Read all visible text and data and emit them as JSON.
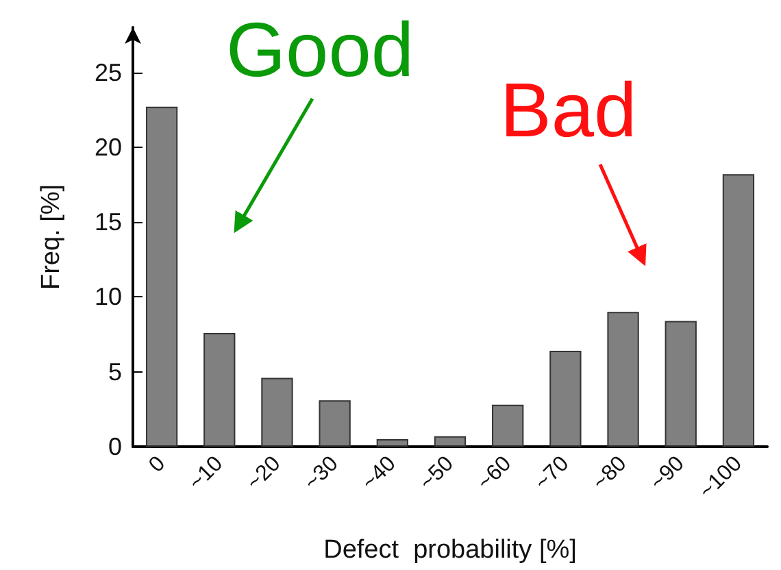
{
  "chart_data": {
    "type": "bar",
    "xlabel": "Defect  probability [%]",
    "ylabel": "Freq. [%]",
    "categories": [
      "0",
      "~10",
      "~20",
      "~30",
      "~40",
      "~50",
      "~60",
      "~70",
      "~80",
      "~90",
      "~100"
    ],
    "values": [
      22.7,
      7.6,
      4.6,
      3.1,
      0.5,
      0.7,
      2.8,
      6.4,
      9.0,
      8.4,
      18.2
    ],
    "color": "#808080",
    "ylim": [
      0,
      28
    ],
    "yticks": [
      0,
      5,
      10,
      15,
      20,
      25
    ],
    "grid": false,
    "annotations": [
      "Good",
      "Bad"
    ]
  }
}
